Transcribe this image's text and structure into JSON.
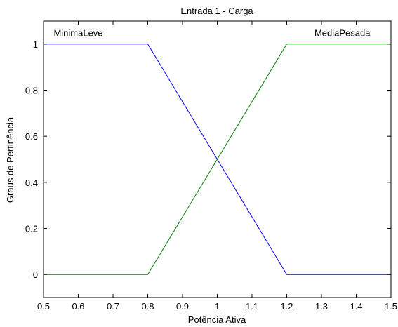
{
  "chart_data": {
    "type": "line",
    "title": "Entrada 1 - Carga",
    "xlabel": "Potência Ativa",
    "ylabel": "Graus de Pertinência",
    "xlim": [
      0.5,
      1.5
    ],
    "ylim": [
      -0.1,
      1.1
    ],
    "xticks": [
      0.5,
      0.6,
      0.7,
      0.8,
      0.9,
      1,
      1.1,
      1.2,
      1.3,
      1.4,
      1.5
    ],
    "xtick_labels": [
      "0.5",
      "0.6",
      "0.7",
      "0.8",
      "0.9",
      "1",
      "1.1",
      "1.2",
      "1.3",
      "1.4",
      "1.5"
    ],
    "yticks": [
      0,
      0.2,
      0.4,
      0.6,
      0.8,
      1
    ],
    "ytick_labels": [
      "0",
      "0.2",
      "0.4",
      "0.6",
      "0.8",
      "1"
    ],
    "grid": false,
    "series": [
      {
        "name": "MinimaLeve",
        "color": "#0000ff",
        "x": [
          0.5,
          0.8,
          1.2,
          1.5
        ],
        "y": [
          1,
          1,
          0,
          0
        ],
        "label_x": 0.6,
        "label_y": 1.05
      },
      {
        "name": "MediaPesada",
        "color": "#008000",
        "x": [
          0.5,
          0.8,
          1.2,
          1.5
        ],
        "y": [
          0,
          0,
          1,
          1
        ],
        "label_x": 1.36,
        "label_y": 1.05
      }
    ]
  }
}
